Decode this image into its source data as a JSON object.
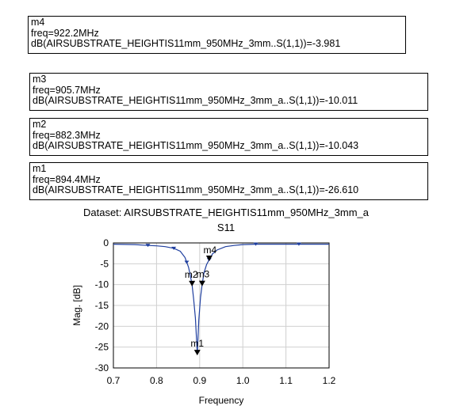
{
  "markers": [
    {
      "id": "m4",
      "name": "m4",
      "freq": "freq=922.2MHz",
      "value": "dB(AIRSUBSTRATE_HEIGHTIS11mm_950MHz_3mm..S(1,1))=-3.981"
    },
    {
      "id": "m3",
      "name": "m3",
      "freq": "freq=905.7MHz",
      "value": "dB(AIRSUBSTRATE_HEIGHTIS11mm_950MHz_3mm_a..S(1,1))=-10.011"
    },
    {
      "id": "m2",
      "name": "m2",
      "freq": "freq=882.3MHz",
      "value": "dB(AIRSUBSTRATE_HEIGHTIS11mm_950MHz_3mm_a..S(1,1))=-10.043"
    },
    {
      "id": "m1",
      "name": "m1",
      "freq": "freq=894.4MHz",
      "value": "dB(AIRSUBSTRATE_HEIGHTIS11mm_950MHz_3mm_a..S(1,1))=-26.610"
    }
  ],
  "chart_data": {
    "type": "line",
    "title": "Dataset: AIRSUBSTRATE_HEIGHTIS11mm_950MHz_3mm_a",
    "subtitle": "S11",
    "xlabel": "Frequency",
    "ylabel": "Mag. [dB]",
    "xlim": [
      0.7,
      1.2
    ],
    "ylim": [
      -30,
      0
    ],
    "xticks": [
      "0.7",
      "0.8",
      "0.9",
      "1.0",
      "1.1",
      "1.2"
    ],
    "yticks": [
      "0",
      "-5",
      "-10",
      "-15",
      "-20",
      "-25",
      "-30"
    ],
    "grid": true,
    "line_color": "#1f3f9f",
    "series": [
      {
        "x": [
          0.7,
          0.75,
          0.78,
          0.8,
          0.82,
          0.84,
          0.855,
          0.866,
          0.874,
          0.878,
          0.8823,
          0.886,
          0.89,
          0.8944,
          0.898,
          0.902,
          0.9057,
          0.91,
          0.916,
          0.9222,
          0.93,
          0.94,
          0.96,
          0.98,
          1.0,
          1.03,
          1.06,
          1.1,
          1.13,
          1.16,
          1.2
        ],
        "y": [
          -0.3,
          -0.4,
          -0.6,
          -0.7,
          -0.9,
          -1.3,
          -2.0,
          -3.5,
          -5.8,
          -7.6,
          -10.043,
          -13.5,
          -18.0,
          -26.61,
          -18.5,
          -13.0,
          -10.011,
          -7.2,
          -5.2,
          -3.981,
          -2.6,
          -1.7,
          -0.9,
          -0.6,
          -0.4,
          -0.3,
          -0.3,
          -0.3,
          -0.3,
          -0.3,
          -0.3
        ]
      }
    ],
    "points": [
      {
        "name": "m2",
        "x": 0.8823,
        "y": -10.043
      },
      {
        "name": "m1",
        "x": 0.8944,
        "y": -26.61
      },
      {
        "name": "m3",
        "x": 0.9057,
        "y": -10.011
      },
      {
        "name": "m4",
        "x": 0.9222,
        "y": -3.981
      }
    ],
    "sample_points_x": [
      0.78,
      0.84,
      0.87,
      0.922,
      1.03,
      1.13
    ]
  }
}
